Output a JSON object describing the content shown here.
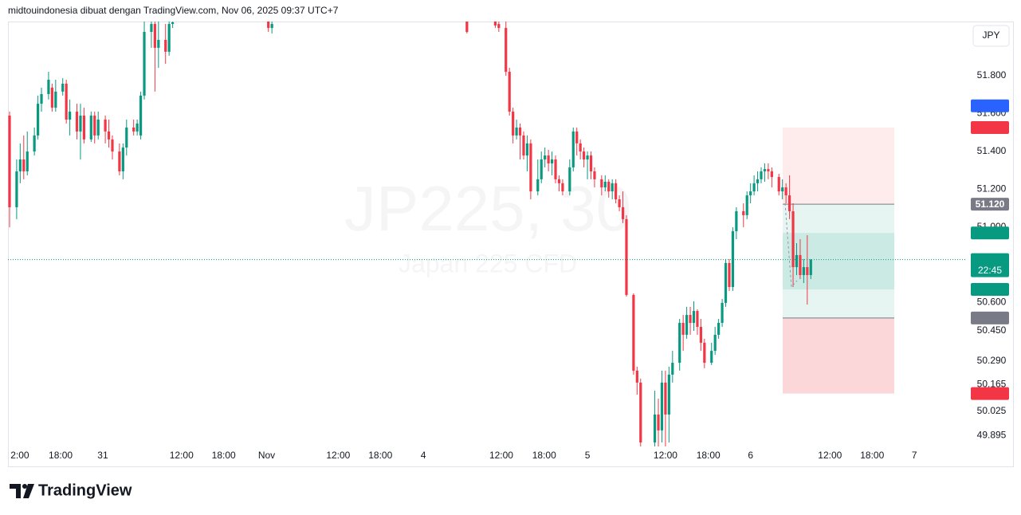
{
  "header": "midtouindonesia dibuat dengan TradingView.com, Nov 06, 2025 09:37 UTC+7",
  "currency_button": "JPY",
  "logo": "TradingView",
  "chart_data": {
    "type": "candlestick",
    "title": "JP225, 30",
    "subtitle": "Japan 225 CFD",
    "up_color": "#089981",
    "down_color": "#f23645",
    "xlim": [
      0,
      270
    ],
    "ylim": [
      49.838,
      52.087
    ],
    "x": [
      0,
      2,
      3,
      4,
      5,
      7,
      8,
      9,
      11,
      12,
      13,
      15,
      16,
      17,
      19,
      20,
      21,
      23,
      24,
      25,
      27,
      28,
      29,
      31,
      32,
      33,
      35,
      36,
      37,
      38,
      40,
      41,
      42,
      44,
      45,
      46,
      73,
      74,
      129,
      137,
      138,
      140,
      141,
      142,
      143,
      144,
      145,
      146,
      147,
      149,
      150,
      151,
      152,
      153,
      154,
      155,
      156,
      158,
      159,
      160,
      161,
      162,
      163,
      164,
      165,
      167,
      168,
      169,
      170,
      171,
      172,
      173,
      174,
      176,
      177,
      178,
      182,
      183,
      184,
      185,
      186,
      187,
      189,
      190,
      191,
      192,
      193,
      194,
      195,
      196,
      198,
      199,
      200,
      201,
      202,
      203,
      204,
      205,
      207,
      208,
      209,
      210,
      211,
      212,
      213,
      214,
      215,
      217,
      218,
      219,
      220,
      221,
      222,
      223,
      224,
      225,
      226
    ],
    "open": [
      51.589,
      51.104,
      51.294,
      51.357,
      51.294,
      51.399,
      51.484,
      51.652,
      51.703,
      51.737,
      51.631,
      51.716,
      51.758,
      51.568,
      51.61,
      51.505,
      51.589,
      51.463,
      51.589,
      51.484,
      51.568,
      51.505,
      51.463,
      51.399,
      51.294,
      51.42,
      51.526,
      51.505,
      51.484,
      51.695,
      52.032,
      52.074,
      51.948,
      51.99,
      51.927,
      52.074,
      52.087,
      52.053,
      52.087,
      52.087,
      52.074,
      52.053,
      51.821,
      51.61,
      51.484,
      51.526,
      51.484,
      51.378,
      51.442,
      51.188,
      51.252,
      51.357,
      51.378,
      51.336,
      51.357,
      51.252,
      51.231,
      51.188,
      51.315,
      51.505,
      51.442,
      51.399,
      51.357,
      51.378,
      51.294,
      51.252,
      51.209,
      51.239,
      51.188,
      51.231,
      51.146,
      51.104,
      51.041,
      50.64,
      50.239,
      50.176,
      49.859,
      50.007,
      49.923,
      50.176,
      50.007,
      50.218,
      50.281,
      50.492,
      50.429,
      50.534,
      50.492,
      50.555,
      50.471,
      50.387,
      50.281,
      50.344,
      50.429,
      50.492,
      50.598,
      50.809,
      50.682,
      50.977,
      51.083,
      51.062,
      51.167,
      51.188,
      51.231,
      51.252,
      51.294,
      51.306,
      51.294,
      51.264,
      51.188,
      51.209,
      51.167,
      51.083,
      50.787,
      50.851,
      50.745,
      50.787,
      50.745
    ],
    "high": [
      51.61,
      51.357,
      51.442,
      51.484,
      51.505,
      51.526,
      51.695,
      51.737,
      51.821,
      51.758,
      51.779,
      51.787,
      51.779,
      51.674,
      51.652,
      51.652,
      51.631,
      51.61,
      51.61,
      51.61,
      51.589,
      51.568,
      51.484,
      51.442,
      51.442,
      51.568,
      51.568,
      51.568,
      51.716,
      52.116,
      52.087,
      52.087,
      52.087,
      52.074,
      52.087,
      52.087,
      52.087,
      52.087,
      52.087,
      52.087,
      52.087,
      52.087,
      51.842,
      51.631,
      51.568,
      51.547,
      51.505,
      51.484,
      51.463,
      51.357,
      51.399,
      51.42,
      51.408,
      51.399,
      51.378,
      51.273,
      51.252,
      51.357,
      51.526,
      51.526,
      51.463,
      51.42,
      51.399,
      51.399,
      51.315,
      51.273,
      51.273,
      51.252,
      51.252,
      51.252,
      51.167,
      51.188,
      51.062,
      50.648,
      50.26,
      50.197,
      50.133,
      50.091,
      50.239,
      50.239,
      50.26,
      50.344,
      50.513,
      50.534,
      50.577,
      50.577,
      50.606,
      50.564,
      50.513,
      50.408,
      50.387,
      50.471,
      50.513,
      50.619,
      50.83,
      50.83,
      50.998,
      51.104,
      51.125,
      51.188,
      51.231,
      51.273,
      51.294,
      51.315,
      51.336,
      51.336,
      51.315,
      51.281,
      51.252,
      51.231,
      51.273,
      51.125,
      50.914,
      50.935,
      50.83,
      50.956,
      50.83
    ],
    "low": [
      50.998,
      51.041,
      51.231,
      51.252,
      51.273,
      51.378,
      51.463,
      51.61,
      51.674,
      51.61,
      51.61,
      51.695,
      51.547,
      51.484,
      51.463,
      51.357,
      51.442,
      51.45,
      51.442,
      51.463,
      51.442,
      51.42,
      51.357,
      51.273,
      51.252,
      51.378,
      51.484,
      51.484,
      51.463,
      51.674,
      51.948,
      51.716,
      51.842,
      51.863,
      51.906,
      52.053,
      52.032,
      52.024,
      52.024,
      52.053,
      52.032,
      51.8,
      51.589,
      51.442,
      51.463,
      51.357,
      51.357,
      51.294,
      51.146,
      51.167,
      51.231,
      51.315,
      51.294,
      51.273,
      51.231,
      51.188,
      51.167,
      51.167,
      51.294,
      51.378,
      51.357,
      51.315,
      51.252,
      51.252,
      51.209,
      51.167,
      51.188,
      51.155,
      51.146,
      51.125,
      51.083,
      51.02,
      50.631,
      50.218,
      50.112,
      49.838,
      49.838,
      49.838,
      49.859,
      49.838,
      49.859,
      50.176,
      50.239,
      50.344,
      50.408,
      50.429,
      50.45,
      50.429,
      50.344,
      50.252,
      50.269,
      50.323,
      50.408,
      50.471,
      50.577,
      50.661,
      50.661,
      50.935,
      50.998,
      51.041,
      51.125,
      51.167,
      51.188,
      51.231,
      51.239,
      51.252,
      51.209,
      51.167,
      51.146,
      51.125,
      51.041,
      50.682,
      50.745,
      50.724,
      50.703,
      50.589,
      50.724
    ],
    "close": [
      51.104,
      51.294,
      51.357,
      51.294,
      51.399,
      51.484,
      51.652,
      51.703,
      51.779,
      51.631,
      51.716,
      51.758,
      51.568,
      51.61,
      51.505,
      51.589,
      51.463,
      51.589,
      51.484,
      51.568,
      51.505,
      51.463,
      51.399,
      51.294,
      51.42,
      51.526,
      51.505,
      51.547,
      51.695,
      52.032,
      52.074,
      51.948,
      51.99,
      51.927,
      52.074,
      52.083,
      52.053,
      52.074,
      52.032,
      52.066,
      52.053,
      51.821,
      51.61,
      51.484,
      51.526,
      51.484,
      51.378,
      51.442,
      51.188,
      51.252,
      51.357,
      51.378,
      51.336,
      51.357,
      51.252,
      51.231,
      51.188,
      51.315,
      51.505,
      51.442,
      51.399,
      51.357,
      51.378,
      51.294,
      51.252,
      51.209,
      51.239,
      51.188,
      51.231,
      51.146,
      51.104,
      51.041,
      50.64,
      50.239,
      50.176,
      49.859,
      50.007,
      49.923,
      50.176,
      50.007,
      50.218,
      50.281,
      50.492,
      50.429,
      50.534,
      50.492,
      50.555,
      50.471,
      50.387,
      50.281,
      50.344,
      50.429,
      50.492,
      50.598,
      50.809,
      50.682,
      50.977,
      51.083,
      51.062,
      51.167,
      51.188,
      51.231,
      51.252,
      51.294,
      51.306,
      51.294,
      51.264,
      51.188,
      51.209,
      51.167,
      51.083,
      50.787,
      50.851,
      50.745,
      50.787,
      50.745,
      50.827
    ],
    "xticks": [
      {
        "value": 2.9,
        "label": "2:00"
      },
      {
        "value": 14.4,
        "label": "18:00"
      },
      {
        "value": 26.3,
        "label": "31"
      },
      {
        "value": 48.5,
        "label": "12:00"
      },
      {
        "value": 60.4,
        "label": "18:00"
      },
      {
        "value": 72.5,
        "label": "Nov"
      },
      {
        "value": 92.7,
        "label": "12:00"
      },
      {
        "value": 104.6,
        "label": "18:00"
      },
      {
        "value": 116.7,
        "label": "4"
      },
      {
        "value": 138.7,
        "label": "12:00"
      },
      {
        "value": 150.8,
        "label": "18:00"
      },
      {
        "value": 163,
        "label": "5"
      },
      {
        "value": 185,
        "label": "12:00"
      },
      {
        "value": 197.1,
        "label": "18:00"
      },
      {
        "value": 209,
        "label": "6"
      },
      {
        "value": 231.4,
        "label": "12:00"
      },
      {
        "value": 243.3,
        "label": "18:00"
      },
      {
        "value": 255.2,
        "label": "7"
      }
    ],
    "yticks": [
      {
        "value": 51.8,
        "label": "51.800"
      },
      {
        "value": 51.6,
        "label": "51.600"
      },
      {
        "value": 51.4,
        "label": "51.400"
      },
      {
        "value": 51.2,
        "label": "51.200"
      },
      {
        "value": 51.0,
        "label": "51.000"
      },
      {
        "value": 50.6,
        "label": "50.600"
      },
      {
        "value": 50.45,
        "label": "50.450"
      },
      {
        "value": 50.29,
        "label": "50.290"
      },
      {
        "value": 50.165,
        "label": "50.165"
      },
      {
        "value": 50.025,
        "label": "50.025"
      },
      {
        "value": 49.895,
        "label": "49.895"
      }
    ],
    "price_labels": [
      {
        "value": 51.641,
        "color": "#2962ff"
      },
      {
        "value": 51.526,
        "color": "#f23645"
      },
      {
        "value": 51.12,
        "label": "51.120",
        "color": "#787b86"
      },
      {
        "value": 50.968,
        "color": "#089981"
      },
      {
        "value": 50.827,
        "color": "#089981"
      },
      {
        "value": 50.669,
        "color": "#089981"
      },
      {
        "value": 50.518,
        "color": "#787b86"
      },
      {
        "value": 50.118,
        "color": "#f23645"
      }
    ],
    "countdown": "22:45"
  }
}
